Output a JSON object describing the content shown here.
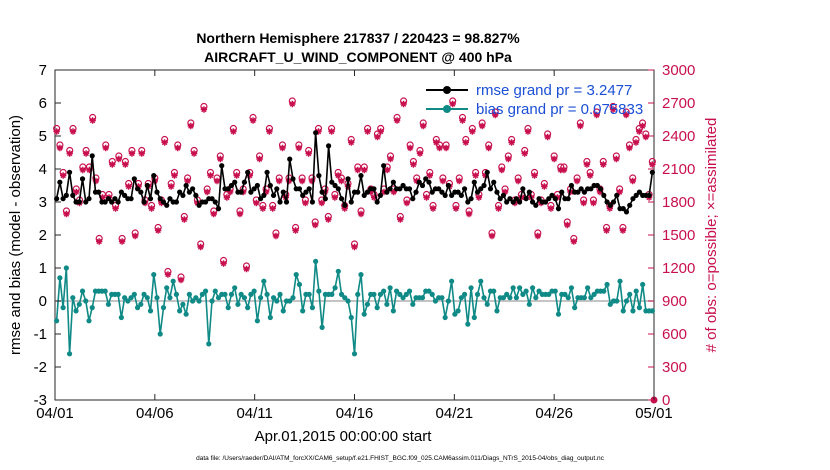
{
  "chart_data": {
    "type": "line",
    "title_line1": "Northern Hemisphere 217837 / 220423 = 98.827%",
    "title_line2": "AIRCRAFT_U_WIND_COMPONENT @ 400 hPa",
    "xlabel": "Apr.01,2015 00:00:00 start",
    "ylabel_left": "rmse and bias (model - observation)",
    "ylabel_right": "# of obs: o=possible; ×=assimilated",
    "footnote": "data file: /Users/raeder/DAI/ATM_forcXX/CAM6_setup/f.e21.FHIST_BGC.f09_025.CAM6assim.011/Diags_NTrS_2015-04/obs_diag_output.nc",
    "x_ticks": [
      "04/01",
      "04/06",
      "04/11",
      "04/16",
      "04/21",
      "04/26",
      "05/01"
    ],
    "x_range_days": [
      0,
      30
    ],
    "y_left_range": [
      -3,
      7
    ],
    "y_left_ticks": [
      "-3",
      "-2",
      "-1",
      "0",
      "1",
      "2",
      "3",
      "4",
      "5",
      "6",
      "7"
    ],
    "y_right_range": [
      0,
      3000
    ],
    "y_right_ticks": [
      "0",
      "300",
      "600",
      "900",
      "1200",
      "1500",
      "1800",
      "2100",
      "2400",
      "2700",
      "3000"
    ],
    "grid": false,
    "legend_position": "top-right",
    "colors": {
      "rmse": "#000000",
      "bias": "#0f8a86",
      "obs": "#c8104f",
      "zero_line": "#b0b0b0",
      "legend_text": "#1a4fd6"
    },
    "series": [
      {
        "name": "rmse grand pr = 3.2477",
        "values": [
          3.1,
          3.6,
          3.1,
          3.2,
          3.9,
          3.2,
          3.0,
          3.0,
          3.7,
          3.0,
          3.1,
          4.4,
          3.3,
          3.3,
          3.0,
          3.0,
          3.1,
          3.0,
          3.1,
          3.0,
          3.3,
          3.2,
          3.1,
          3.1,
          3.7,
          3.4,
          3.3,
          3.0,
          3.5,
          3.1,
          3.8,
          3.3,
          3.1,
          3.0,
          2.9,
          3.1,
          3.0,
          3.0,
          3.3,
          3.2,
          3.5,
          3.3,
          3.4,
          3.2,
          2.9,
          3.0,
          3.0,
          3.1,
          3.1,
          3.0,
          2.8,
          4.1,
          3.4,
          3.4,
          3.5,
          3.6,
          3.3,
          3.3,
          3.6,
          3.9,
          3.3,
          3.4,
          3.5,
          3.1,
          3.2,
          3.9,
          3.5,
          3.2,
          3.4,
          3.0,
          3.3,
          3.0,
          4.3,
          3.7,
          3.4,
          3.4,
          3.2,
          3.3,
          3.4,
          3.0,
          5.1,
          3.8,
          3.3,
          3.1,
          4.7,
          3.6,
          3.5,
          3.4,
          3.1,
          2.9,
          3.7,
          3.0,
          3.3,
          3.3,
          3.8,
          3.2,
          3.3,
          3.4,
          3.4,
          3.0,
          3.2,
          4.1,
          3.3,
          3.4,
          3.6,
          3.4,
          3.4,
          3.5,
          3.4,
          3.4,
          3.1,
          3.3,
          3.6,
          3.5,
          3.7,
          3.6,
          3.3,
          3.4,
          3.4,
          3.3,
          3.2,
          3.5,
          3.2,
          3.3,
          3.3,
          3.2,
          3.4,
          3.0,
          3.1,
          3.6,
          3.3,
          3.4,
          3.5,
          3.9,
          3.4,
          3.6,
          3.3,
          3.1,
          3.2,
          3.0,
          3.1,
          3.0,
          3.1,
          3.0,
          3.4,
          3.1,
          3.3,
          3.0,
          2.9,
          3.1,
          3.0,
          3.0,
          3.1,
          3.2,
          3.1,
          2.8,
          3.3,
          3.1,
          3.1,
          3.5,
          3.3,
          3.3,
          3.4,
          3.3,
          3.4,
          3.4,
          3.5,
          3.5,
          3.4,
          3.2,
          3.0,
          2.9,
          3.0,
          3.2,
          2.8,
          2.8,
          2.7,
          2.9,
          3.1,
          3.2,
          3.3,
          3.2,
          3.2,
          3.2,
          3.9
        ]
      },
      {
        "name": "bias grand pr = 0.075833",
        "values": [
          -0.6,
          0.7,
          -0.2,
          1.0,
          -1.6,
          0.1,
          -0.3,
          -0.1,
          0.3,
          0.0,
          -0.6,
          -0.2,
          0.3,
          0.3,
          0.3,
          0.3,
          -0.1,
          0.2,
          0.2,
          0.2,
          -0.5,
          0.1,
          0.0,
          0.1,
          0.2,
          -0.2,
          -0.1,
          0.2,
          0.1,
          -0.3,
          0.8,
          0.1,
          -1.0,
          -0.2,
          0.4,
          0.1,
          0.6,
          0.2,
          -0.3,
          -0.1,
          -0.4,
          0.2,
          0.0,
          0.1,
          0.0,
          0.2,
          0.3,
          -1.3,
          0.0,
          0.3,
          0.1,
          0.2,
          0.2,
          -0.2,
          0.2,
          0.4,
          -0.1,
          0.2,
          0.1,
          -0.2,
          0.2,
          0.3,
          -0.6,
          0.1,
          0.6,
          0.2,
          -0.5,
          0.1,
          0.0,
          0.2,
          -0.3,
          0.0,
          0.0,
          0.1,
          0.8,
          0.5,
          -0.3,
          0.2,
          0.2,
          -0.2,
          1.2,
          0.3,
          -0.8,
          0.2,
          0.2,
          0.2,
          0.4,
          0.9,
          0.2,
          0.1,
          0.0,
          -0.5,
          -1.6,
          0.2,
          0.8,
          -0.4,
          -0.1,
          0.2,
          0.2,
          -0.2,
          0.2,
          0.3,
          -0.1,
          0.4,
          -0.3,
          0.3,
          0.2,
          0.1,
          0.2,
          0.3,
          -0.1,
          0.1,
          0.1,
          0.1,
          0.3,
          0.3,
          0.2,
          0.0,
          0.1,
          0.1,
          -0.5,
          0.0,
          0.6,
          -0.4,
          -0.3,
          0.1,
          0.2,
          -0.7,
          0.4,
          -0.5,
          0.2,
          0.6,
          0.1,
          -0.1,
          0.3,
          0.3,
          -0.3,
          0.1,
          0.1,
          0.2,
          0.1,
          0.4,
          0.1,
          0.4,
          0.2,
          0.3,
          -0.1,
          0.4,
          0.1,
          0.3,
          0.2,
          0.2,
          0.2,
          0.3,
          0.3,
          -0.4,
          0.2,
          0.2,
          0.1,
          0.4,
          -0.2,
          0.1,
          0.1,
          0.1,
          0.4,
          0.1,
          0.2,
          0.3,
          0.3,
          0.3,
          0.5,
          -0.1,
          0.0,
          0.0,
          0.6,
          -0.3,
          0.0,
          0.2,
          -0.3,
          0.3,
          -0.2,
          0.5,
          -0.3,
          -0.3,
          -0.3
        ]
      }
    ],
    "obs_possible": [
      2450,
      2300,
      2050,
      1700,
      2250,
      2450,
      1900,
      1800,
      2100,
      2250,
      2100,
      2550,
      2000,
      1450,
      1850,
      2300,
      1850,
      2150,
      1750,
      2200,
      1450,
      2150,
      1950,
      2250,
      1500,
      1950,
      2250,
      1800,
      1950,
      1750,
      2000,
      1550,
      1800,
      2350,
      1150,
      1950,
      2050,
      2300,
      1100,
      1650,
      2000,
      2500,
      2250,
      1800,
      1400,
      2650,
      1900,
      2050,
      1700,
      2000,
      2200,
      1250,
      1850,
      1900,
      2450,
      2050,
      1700,
      1900,
      1200,
      2050,
      2550,
      1800,
      2200,
      1750,
      1900,
      2450,
      1750,
      1500,
      2000,
      2300,
      1850,
      2000,
      2700,
      1550,
      2300,
      2000,
      1800,
      2250,
      2000,
      1600,
      2450,
      1800,
      1900,
      1650,
      2450,
      1850,
      2050,
      2000,
      1750,
      1950,
      2350,
      1400,
      2100,
      1700,
      2100,
      2450,
      1900,
      1850,
      2400,
      2450,
      1900,
      2100,
      2200,
      1900,
      2550,
      1650,
      2700,
      1800,
      2300,
      2150,
      2000,
      2250,
      2500,
      1850,
      2050,
      1750,
      2350,
      2300,
      2000,
      2300,
      1950,
      2700,
      1750,
      2000,
      2550,
      2350,
      1700,
      2450,
      2050,
      1850,
      2500,
      2050,
      2300,
      1500,
      2600,
      1750,
      2100,
      1900,
      2200,
      2350,
      1800,
      2000,
      1850,
      2250,
      2450,
      1850,
      2050,
      1500,
      1800,
      1950,
      2400,
      1750,
      2200,
      1850,
      2100,
      2100,
      1600,
      1900,
      1450,
      2000,
      2500,
      1800,
      2150,
      2050,
      1800,
      2600,
      1900,
      2150,
      1550,
      1750,
      2650,
      2200,
      1900,
      1550,
      2600,
      2300,
      2000,
      2350,
      2450,
      2500,
      2400,
      1850,
      2150
    ]
  }
}
